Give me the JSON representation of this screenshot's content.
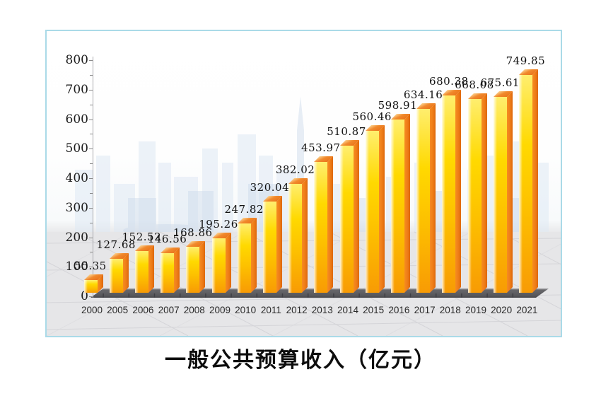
{
  "chart_data": {
    "type": "bar",
    "title": "一般公共预算收入（亿元）",
    "categories": [
      "2000",
      "2005",
      "2006",
      "2007",
      "2008",
      "2009",
      "2010",
      "2011",
      "2012",
      "2013",
      "2014",
      "2015",
      "2016",
      "2017",
      "2018",
      "2019",
      "2020",
      "2021"
    ],
    "values": [
      55.35,
      127.68,
      152.52,
      146.56,
      168.86,
      195.26,
      247.82,
      320.04,
      382.02,
      453.97,
      510.87,
      560.46,
      598.91,
      634.16,
      680.38,
      668.08,
      675.61,
      749.85
    ],
    "ylim": [
      0,
      800
    ],
    "ytick_step": 100,
    "yticks": [
      0,
      100,
      200,
      300,
      400,
      500,
      600,
      700,
      800
    ],
    "data_labels_visible": true,
    "legend": "none",
    "style": "3d-columns-on-perspective-floor",
    "background_watermark": "city-skyline",
    "colors": {
      "bar_front_yellow": "#ffd900",
      "bar_highlight": "#fff7b0",
      "bar_side_orange": "#ee7c17",
      "bar_top_orange": "#ef7d1e",
      "floor_slab_gray": "#5f5f63",
      "ground_band": "#e5e5e7",
      "panel_border": "#aadae8",
      "skyline_blue": "#d4e0ee",
      "label_text": "#1a1a1a"
    }
  }
}
